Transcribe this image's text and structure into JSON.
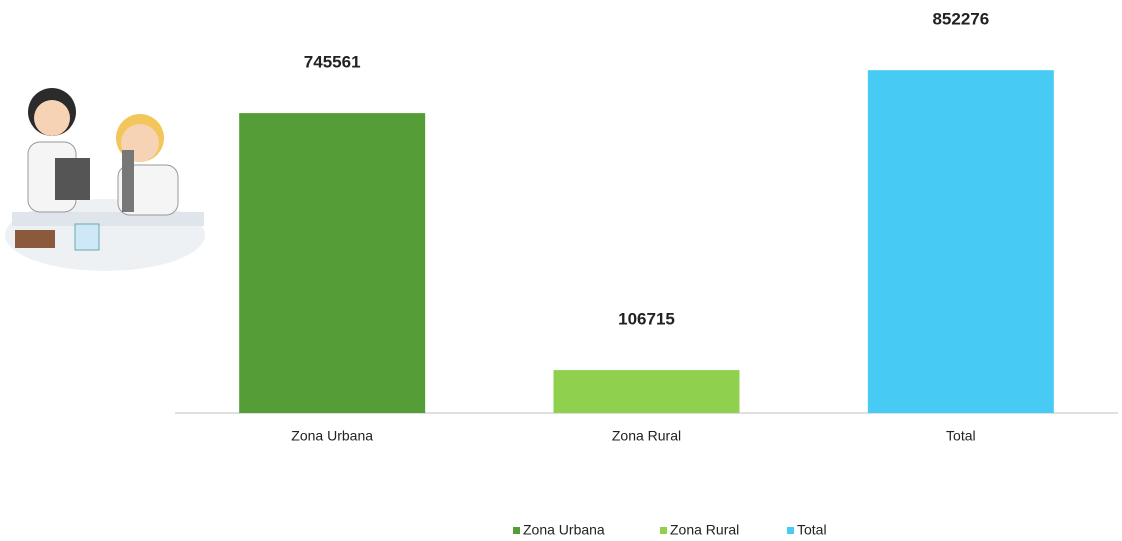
{
  "chart_data": {
    "type": "bar",
    "categories": [
      "Zona Urbana",
      "Zona Rural",
      "Total"
    ],
    "values": [
      745561,
      106715,
      852276
    ],
    "colors": [
      "#559e37",
      "#8fd14f",
      "#47cbf5"
    ],
    "ylim": [
      0,
      900000
    ],
    "legend": "bottom"
  }
}
